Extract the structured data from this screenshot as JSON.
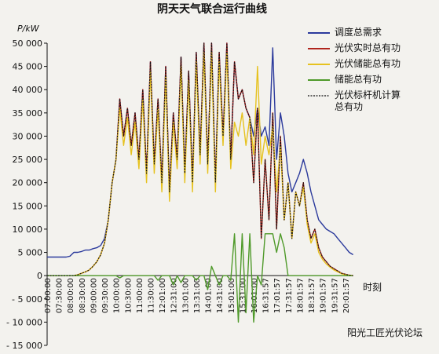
{
  "chart_data": {
    "type": "line",
    "title": "阴天天气联合运行曲线",
    "y_label": "P/kW",
    "x_label": "时刻",
    "watermark": "阳光工匠光伏论坛",
    "categories": [
      "07:00:00",
      null,
      null,
      "07:30:00",
      null,
      null,
      "08:00:00",
      null,
      null,
      "08:30:00",
      null,
      null,
      "09:00:00",
      null,
      null,
      "09:30:00",
      null,
      null,
      "10:00:00",
      null,
      null,
      "10:30:00",
      null,
      null,
      "11:00:00",
      null,
      null,
      "11:30:00",
      null,
      null,
      "12:01:00",
      null,
      null,
      "12:31:00",
      null,
      null,
      "13:01:00",
      null,
      null,
      "13:31:00",
      null,
      null,
      "14:01:00",
      null,
      null,
      "14:31:00",
      null,
      null,
      "15:01:00",
      null,
      null,
      "15:31:00",
      null,
      null,
      "16:01:00",
      null,
      null,
      "16:31:57",
      null,
      null,
      "17:01:57",
      null,
      null,
      "17:31:57",
      null,
      null,
      "18:01:57",
      null,
      null,
      "18:31:57",
      null,
      null,
      "19:01:57",
      null,
      null,
      "19:31:57",
      null,
      null,
      "20:01:57",
      null,
      null
    ],
    "ylim": [
      -15000,
      50000
    ],
    "yticks": [
      {
        "value": -15000,
        "label": "- 15 000"
      },
      {
        "value": -10000,
        "label": "- 10 000"
      },
      {
        "value": -5000,
        "label": "- 5 000"
      },
      0,
      {
        "value": 5000,
        "label": "5 000"
      },
      {
        "value": 10000,
        "label": "10 000"
      },
      {
        "value": 15000,
        "label": "15 000"
      },
      {
        "value": 20000,
        "label": "20 000"
      },
      {
        "value": 25000,
        "label": "25 000"
      },
      {
        "value": 30000,
        "label": "30 000"
      },
      {
        "value": 35000,
        "label": "35 000"
      },
      {
        "value": 40000,
        "label": "40 000"
      },
      {
        "value": 45000,
        "label": "45 000"
      },
      {
        "value": 50000,
        "label": "50 000"
      }
    ],
    "series": [
      {
        "name": "调度总需求",
        "color": "#2b3a9c",
        "dash": false,
        "values": [
          4000,
          4000,
          4000,
          4000,
          4000,
          4000,
          4200,
          5000,
          5000,
          5200,
          5500,
          5500,
          5800,
          6000,
          6500,
          8000,
          12000,
          20000,
          25000,
          38000,
          30000,
          36000,
          28000,
          35000,
          25000,
          40000,
          22000,
          46000,
          24000,
          38000,
          20000,
          45000,
          18000,
          35000,
          25000,
          47000,
          22000,
          44000,
          20000,
          48000,
          26000,
          50000,
          24000,
          50000,
          20000,
          48000,
          30000,
          50000,
          25000,
          46000,
          38000,
          40000,
          36000,
          34000,
          30000,
          36000,
          30000,
          32000,
          28000,
          49000,
          25000,
          35000,
          30000,
          22000,
          18000,
          20000,
          22000,
          25000,
          22000,
          18000,
          15000,
          12000,
          11000,
          10000,
          9500,
          9000,
          8000,
          7000,
          6000,
          5000,
          4500
        ]
      },
      {
        "name": "光伏实时总有功",
        "color": "#b0251d",
        "dash": false,
        "values": [
          0,
          0,
          0,
          0,
          0,
          0,
          0,
          0,
          200,
          500,
          800,
          1200,
          2000,
          3000,
          4500,
          7000,
          12000,
          20000,
          25000,
          38000,
          30000,
          36000,
          28000,
          35000,
          25000,
          40000,
          22000,
          46000,
          24000,
          38000,
          20000,
          45000,
          18000,
          35000,
          25000,
          47000,
          22000,
          44000,
          20000,
          48000,
          26000,
          50000,
          24000,
          50000,
          20000,
          48000,
          30000,
          50000,
          25000,
          46000,
          38000,
          40000,
          36000,
          34000,
          20000,
          36000,
          8000,
          25000,
          12000,
          35000,
          10000,
          30000,
          12000,
          20000,
          8000,
          18000,
          15000,
          20000,
          12000,
          8000,
          10000,
          6000,
          4000,
          3000,
          2000,
          1500,
          1000,
          500,
          300,
          100,
          0
        ]
      },
      {
        "name": "光伏储能总有功",
        "color": "#e6c21f",
        "dash": false,
        "values": [
          0,
          0,
          0,
          0,
          0,
          0,
          0,
          0,
          200,
          500,
          800,
          1200,
          2000,
          3000,
          4500,
          7000,
          12000,
          20000,
          25000,
          36000,
          28000,
          34000,
          26000,
          33000,
          23000,
          38000,
          20000,
          44000,
          22000,
          36000,
          18000,
          43000,
          16000,
          33000,
          23000,
          45000,
          20000,
          42000,
          18000,
          46000,
          24000,
          48000,
          22000,
          48000,
          18000,
          46000,
          28000,
          48000,
          23000,
          33000,
          30000,
          35000,
          28000,
          34000,
          26000,
          45000,
          24000,
          30000,
          26000,
          32000,
          18000,
          28000,
          12000,
          20000,
          8000,
          18000,
          15000,
          19000,
          11000,
          7000,
          9000,
          5000,
          3500,
          2500,
          1800,
          1200,
          800,
          400,
          200,
          100,
          0
        ]
      },
      {
        "name": "储能总有功",
        "color": "#4f9a2a",
        "dash": false,
        "values": [
          0,
          0,
          0,
          0,
          0,
          0,
          0,
          0,
          0,
          0,
          0,
          0,
          0,
          0,
          0,
          0,
          0,
          0,
          0,
          -500,
          0,
          0,
          0,
          0,
          0,
          0,
          0,
          0,
          0,
          -1000,
          0,
          0,
          0,
          -2000,
          0,
          -1500,
          0,
          0,
          0,
          -1000,
          0,
          0,
          -3000,
          2000,
          0,
          -2000,
          0,
          0,
          -1000,
          9000,
          -10000,
          9000,
          -8000,
          9000,
          -10000,
          0,
          -2000,
          9000,
          9000,
          9000,
          5000,
          9000,
          6000,
          0,
          0,
          0,
          0,
          0,
          0,
          0,
          0,
          0,
          0,
          0,
          0,
          0,
          0,
          0,
          0,
          0,
          0
        ]
      },
      {
        "name": "光伏标杆机计算总有功",
        "color": "#111111",
        "dash": true,
        "values": [
          0,
          0,
          0,
          0,
          0,
          0,
          0,
          0,
          200,
          500,
          800,
          1200,
          2000,
          3000,
          4500,
          7000,
          12000,
          20000,
          25000,
          38000,
          30000,
          36000,
          28000,
          35000,
          25000,
          40000,
          22000,
          46000,
          24000,
          38000,
          20000,
          45000,
          18000,
          35000,
          25000,
          47000,
          22000,
          44000,
          20000,
          48000,
          26000,
          50000,
          24000,
          50000,
          20000,
          48000,
          30000,
          50000,
          25000,
          46000,
          38000,
          40000,
          36000,
          34000,
          20000,
          36000,
          8000,
          25000,
          12000,
          35000,
          10000,
          30000,
          12000,
          20000,
          8000,
          18000,
          15000,
          20000,
          12000,
          8000,
          10000,
          6000,
          4000,
          3000,
          2000,
          1500,
          1000,
          500,
          300,
          100,
          0
        ]
      }
    ]
  }
}
